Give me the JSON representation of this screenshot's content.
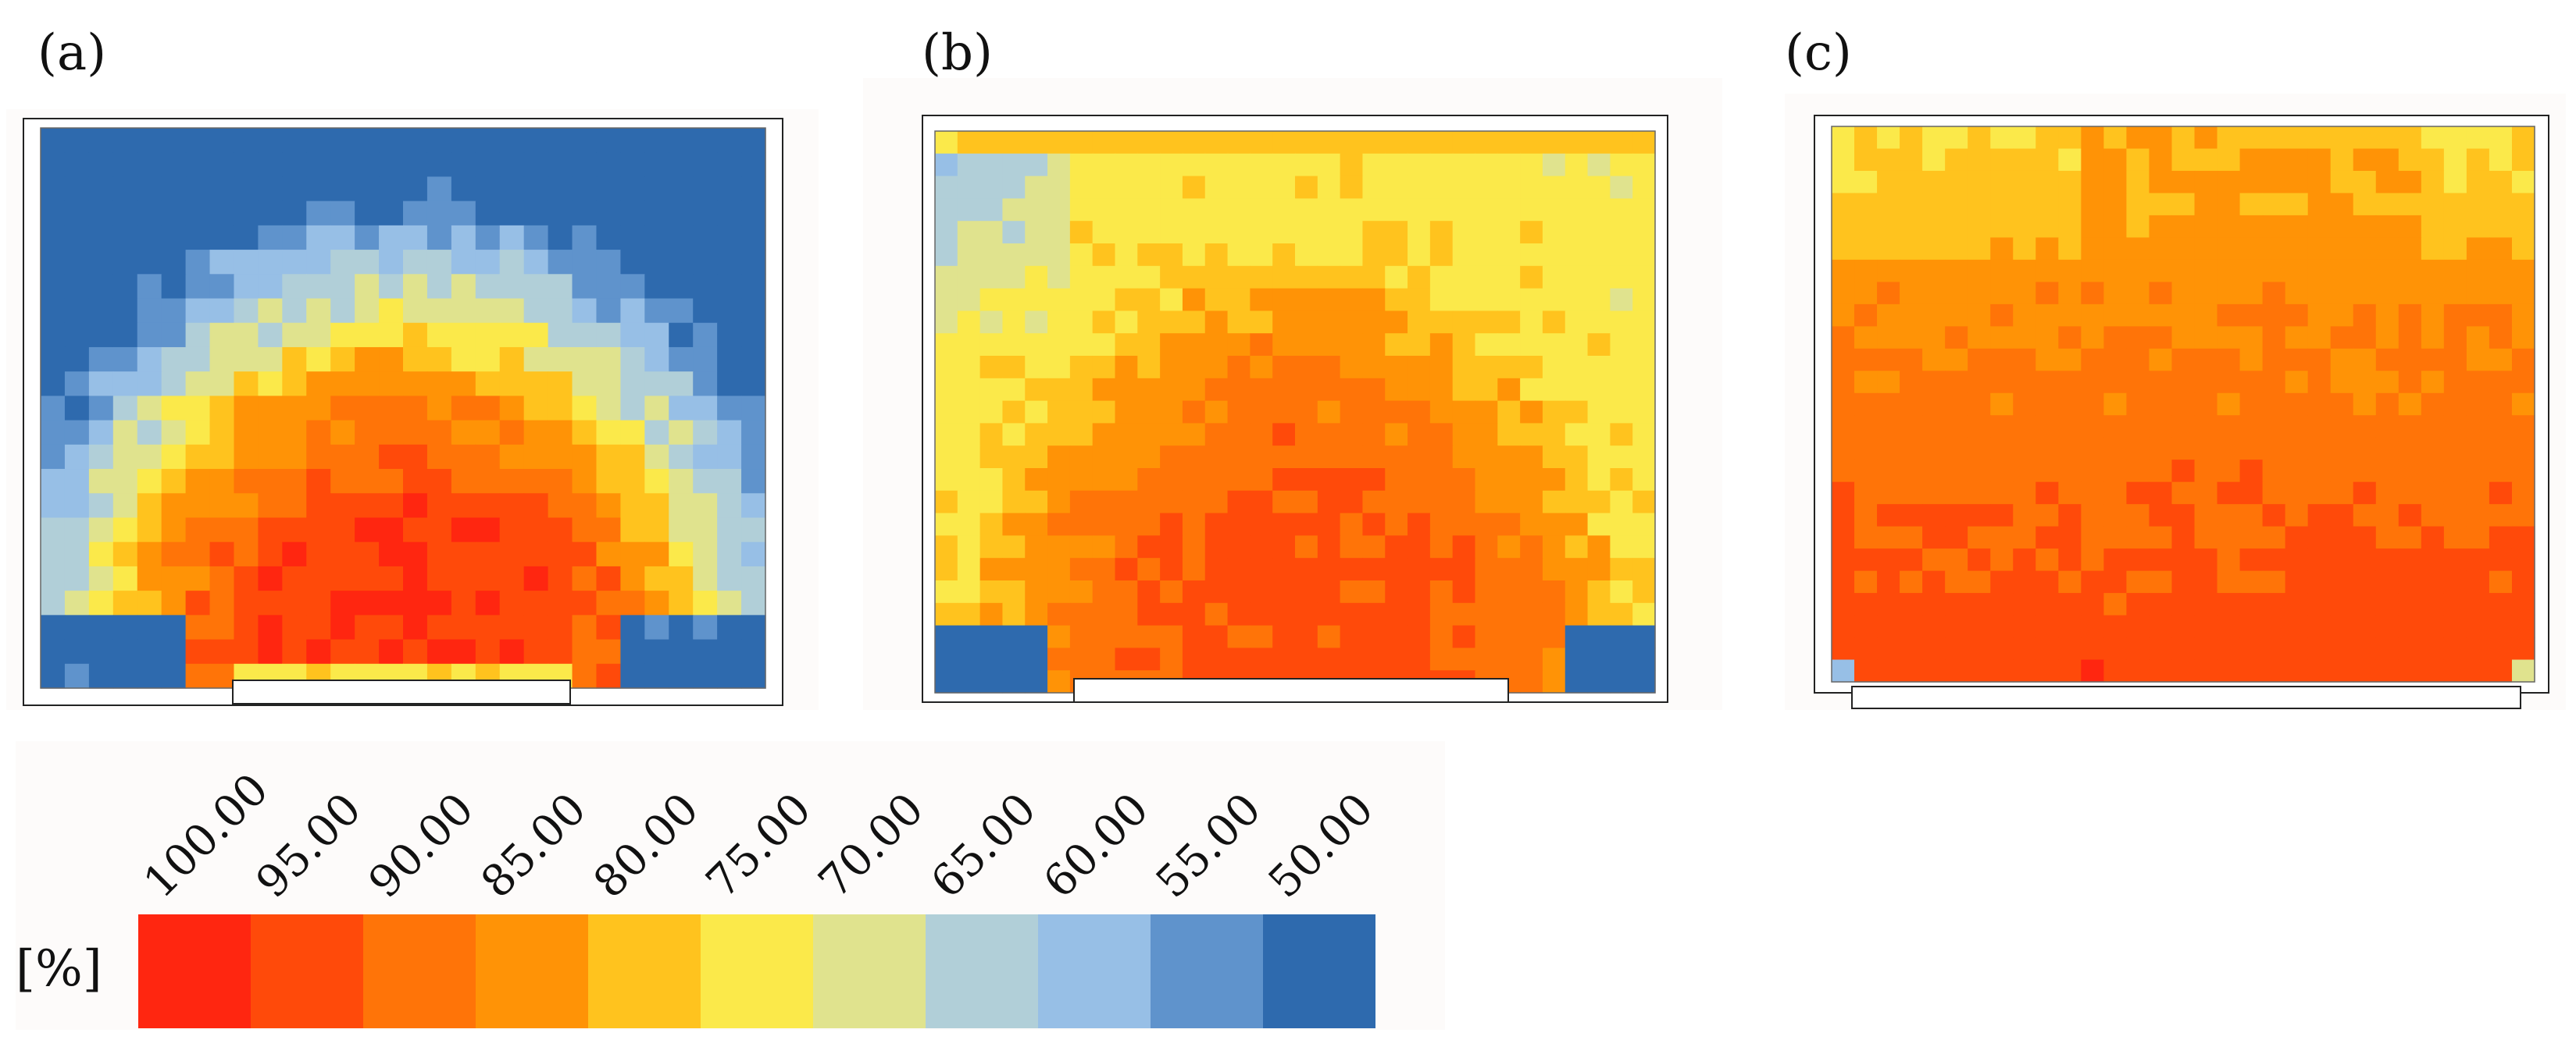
{
  "panels": [
    {
      "label": "(a)",
      "variant": "a"
    },
    {
      "label": "(b)",
      "variant": "b"
    },
    {
      "label": "(c)",
      "variant": "c"
    }
  ],
  "legend": {
    "unit": "[%]",
    "ticks": [
      "100.00",
      "95.00",
      "90.00",
      "85.00",
      "80.00",
      "75.00",
      "70.00",
      "65.00",
      "60.00",
      "55.00",
      "50.00"
    ],
    "colors": [
      "#ff2610",
      "#ff4a0a",
      "#ff7408",
      "#ff9306",
      "#ffc31e",
      "#fbe94a",
      "#e0e38e",
      "#b1cfd8",
      "#97bfe6",
      "#5f93cc",
      "#2e6aae"
    ]
  },
  "chart_data": [
    {
      "type": "heatmap",
      "title": "(a)",
      "value_range": [
        50,
        100
      ],
      "units": "[%]",
      "description_values": {
        "core_max": 100,
        "edge_min": 50
      }
    },
    {
      "type": "heatmap",
      "title": "(b)",
      "value_range": [
        50,
        100
      ],
      "units": "[%]",
      "description_values": {
        "core_max": 95,
        "edge_min": 50
      }
    },
    {
      "type": "heatmap",
      "title": "(c)",
      "value_range": [
        50,
        100
      ],
      "units": "[%]",
      "description_values": {
        "core_max": 95,
        "edge_min": 60
      }
    }
  ]
}
